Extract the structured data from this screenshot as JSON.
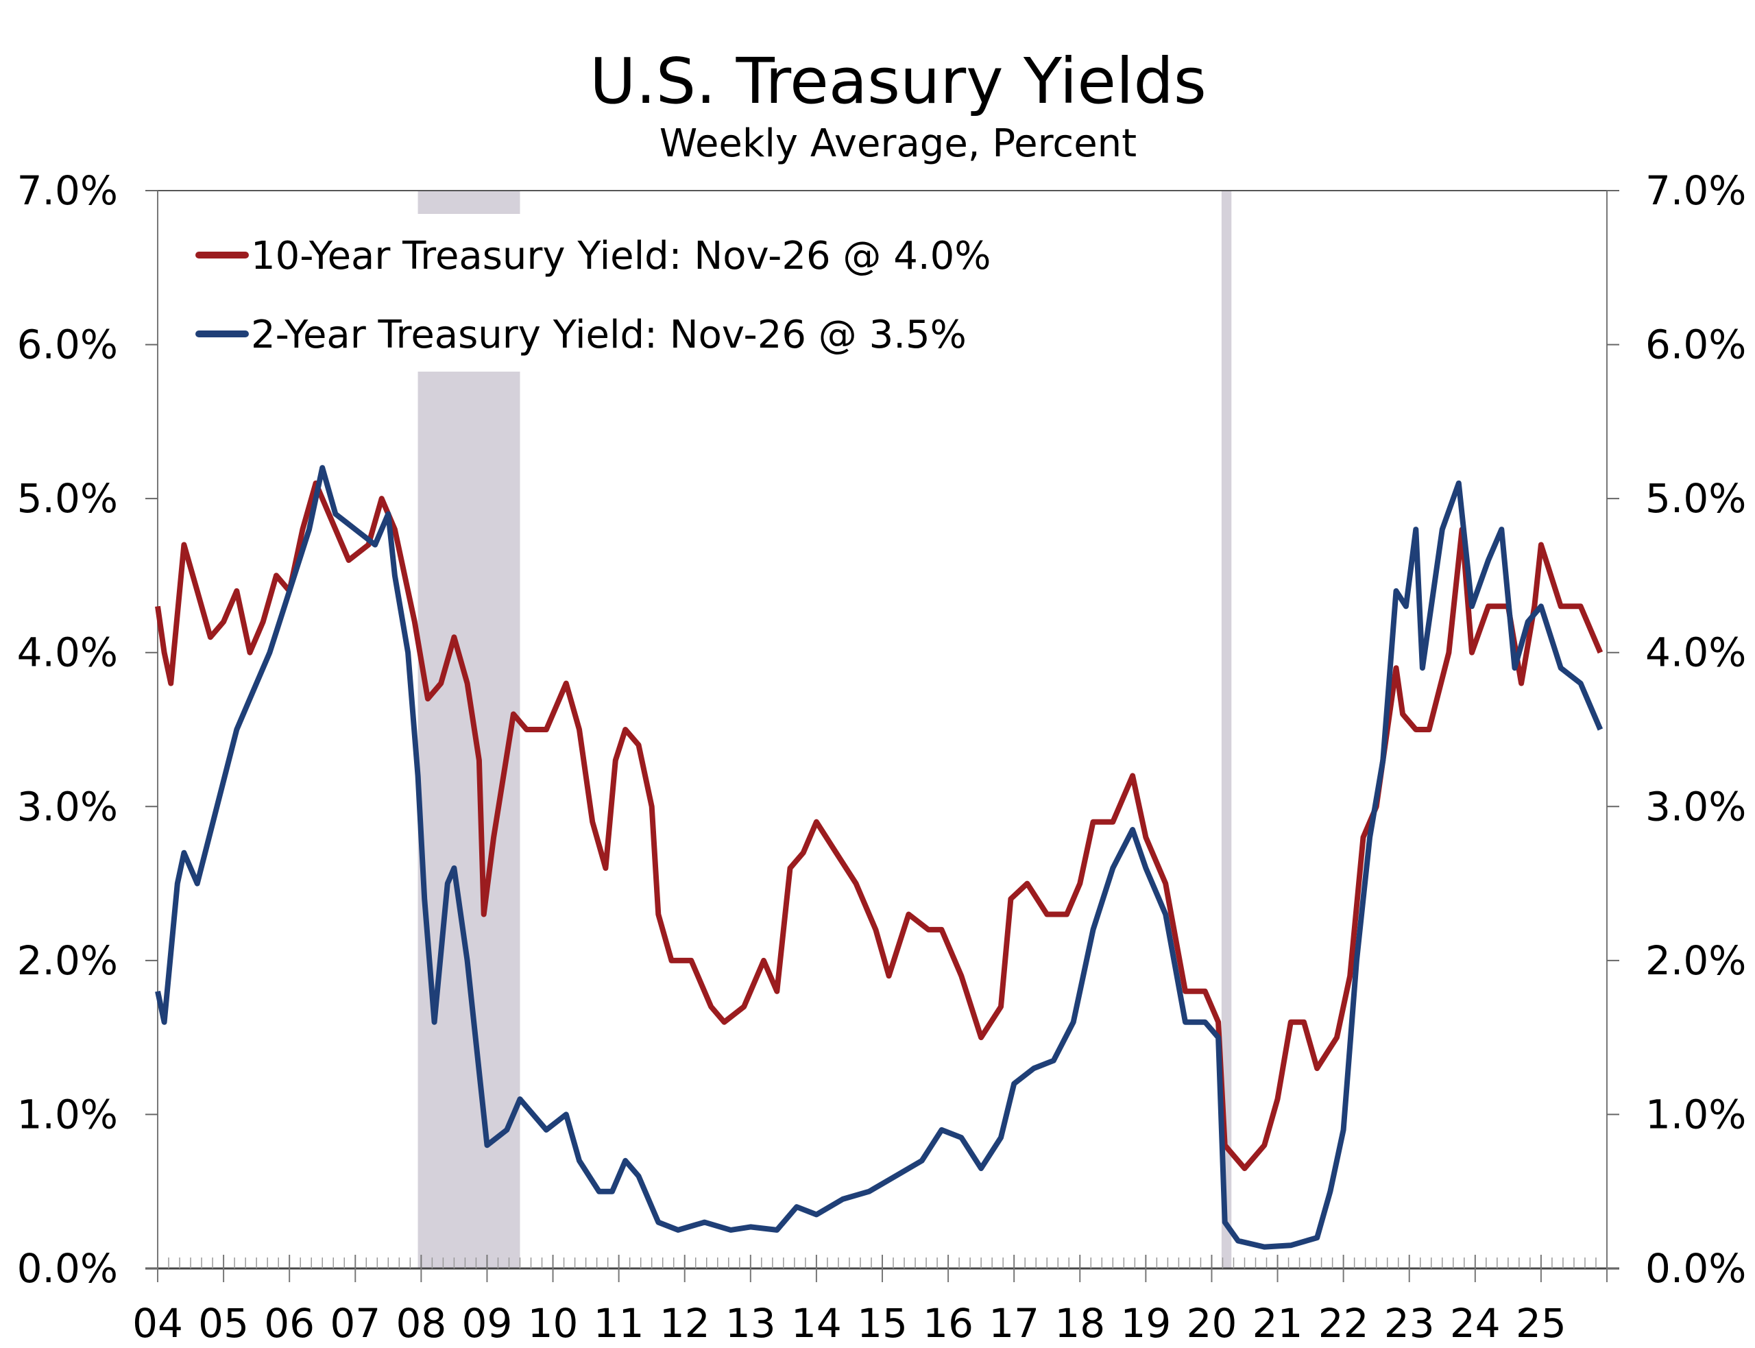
{
  "chart_data": {
    "type": "line",
    "title": "U.S. Treasury Yields",
    "subtitle": "Weekly Average, Percent",
    "xlabel": "",
    "ylabel": "",
    "xlim": [
      2004,
      2026
    ],
    "ylim": [
      0,
      7
    ],
    "y_ticks": [
      0,
      1,
      2,
      3,
      4,
      5,
      6,
      7
    ],
    "y_tick_labels": [
      "0.0%",
      "1.0%",
      "2.0%",
      "3.0%",
      "4.0%",
      "5.0%",
      "6.0%",
      "7.0%"
    ],
    "x_tick_labels": [
      "04",
      "05",
      "06",
      "07",
      "08",
      "09",
      "10",
      "11",
      "12",
      "13",
      "14",
      "15",
      "16",
      "17",
      "18",
      "19",
      "20",
      "21",
      "22",
      "23",
      "24",
      "25"
    ],
    "legend_position": "top-left",
    "recessions": [
      [
        2007.95,
        2009.5
      ],
      [
        2020.15,
        2020.3
      ]
    ],
    "recession_color": "#d5d1da",
    "series": [
      {
        "name": "10-Year Treasury Yield: Nov-26 @ 4.0%",
        "color": "#9b1c1f",
        "x": [
          2004.0,
          2004.1,
          2004.2,
          2004.4,
          2004.6,
          2004.8,
          2005.0,
          2005.2,
          2005.4,
          2005.6,
          2005.8,
          2006.0,
          2006.2,
          2006.4,
          2006.6,
          2006.9,
          2007.2,
          2007.4,
          2007.6,
          2007.9,
          2008.1,
          2008.3,
          2008.5,
          2008.7,
          2008.88,
          2008.95,
          2009.1,
          2009.4,
          2009.6,
          2009.9,
          2010.2,
          2010.4,
          2010.6,
          2010.8,
          2010.95,
          2011.1,
          2011.3,
          2011.5,
          2011.6,
          2011.8,
          2012.1,
          2012.4,
          2012.6,
          2012.9,
          2013.2,
          2013.4,
          2013.6,
          2013.8,
          2014.0,
          2014.3,
          2014.6,
          2014.9,
          2015.1,
          2015.4,
          2015.7,
          2015.9,
          2016.2,
          2016.5,
          2016.8,
          2016.95,
          2017.2,
          2017.5,
          2017.8,
          2018.0,
          2018.2,
          2018.5,
          2018.8,
          2019.0,
          2019.3,
          2019.6,
          2019.9,
          2020.1,
          2020.2,
          2020.5,
          2020.8,
          2021.0,
          2021.2,
          2021.4,
          2021.6,
          2021.9,
          2022.1,
          2022.3,
          2022.5,
          2022.8,
          2022.9,
          2023.1,
          2023.3,
          2023.6,
          2023.8,
          2023.95,
          2024.2,
          2024.5,
          2024.7,
          2024.9,
          2025.0,
          2025.3,
          2025.6,
          2025.9
        ],
        "values": [
          4.3,
          4.0,
          3.8,
          4.7,
          4.4,
          4.1,
          4.2,
          4.4,
          4.0,
          4.2,
          4.5,
          4.4,
          4.8,
          5.1,
          4.9,
          4.6,
          4.7,
          5.0,
          4.8,
          4.2,
          3.7,
          3.8,
          4.1,
          3.8,
          3.3,
          2.3,
          2.8,
          3.6,
          3.5,
          3.5,
          3.8,
          3.5,
          2.9,
          2.6,
          3.3,
          3.5,
          3.4,
          3.0,
          2.3,
          2.0,
          2.0,
          1.7,
          1.6,
          1.7,
          2.0,
          1.8,
          2.6,
          2.7,
          2.9,
          2.7,
          2.5,
          2.2,
          1.9,
          2.3,
          2.2,
          2.2,
          1.9,
          1.5,
          1.7,
          2.4,
          2.5,
          2.3,
          2.3,
          2.5,
          2.9,
          2.9,
          3.2,
          2.8,
          2.5,
          1.8,
          1.8,
          1.6,
          0.8,
          0.65,
          0.8,
          1.1,
          1.6,
          1.6,
          1.3,
          1.5,
          1.9,
          2.8,
          3.0,
          3.9,
          3.6,
          3.5,
          3.5,
          4.0,
          4.8,
          4.0,
          4.3,
          4.3,
          3.8,
          4.3,
          4.7,
          4.3,
          4.3,
          4.0
        ]
      },
      {
        "name": "2-Year Treasury Yield: Nov-26 @ 3.5%",
        "color": "#1f3f77",
        "x": [
          2004.0,
          2004.1,
          2004.3,
          2004.4,
          2004.6,
          2004.9,
          2005.2,
          2005.4,
          2005.7,
          2006.0,
          2006.3,
          2006.5,
          2006.7,
          2007.0,
          2007.3,
          2007.5,
          2007.6,
          2007.8,
          2007.95,
          2008.05,
          2008.2,
          2008.4,
          2008.5,
          2008.7,
          2008.9,
          2009.0,
          2009.3,
          2009.5,
          2009.9,
          2010.2,
          2010.4,
          2010.7,
          2010.9,
          2011.1,
          2011.3,
          2011.6,
          2011.9,
          2012.3,
          2012.7,
          2013.0,
          2013.4,
          2013.7,
          2014.0,
          2014.4,
          2014.8,
          2015.2,
          2015.6,
          2015.9,
          2016.2,
          2016.5,
          2016.8,
          2017.0,
          2017.3,
          2017.6,
          2017.9,
          2018.2,
          2018.5,
          2018.8,
          2019.0,
          2019.3,
          2019.6,
          2019.9,
          2020.1,
          2020.2,
          2020.4,
          2020.8,
          2021.2,
          2021.6,
          2021.8,
          2022.0,
          2022.2,
          2022.4,
          2022.6,
          2022.8,
          2022.95,
          2023.1,
          2023.2,
          2023.5,
          2023.75,
          2023.95,
          2024.2,
          2024.4,
          2024.6,
          2024.8,
          2025.0,
          2025.3,
          2025.6,
          2025.9
        ],
        "values": [
          1.8,
          1.6,
          2.5,
          2.7,
          2.5,
          3.0,
          3.5,
          3.7,
          4.0,
          4.4,
          4.8,
          5.2,
          4.9,
          4.8,
          4.7,
          4.9,
          4.5,
          4.0,
          3.2,
          2.4,
          1.6,
          2.5,
          2.6,
          2.0,
          1.2,
          0.8,
          0.9,
          1.1,
          0.9,
          1.0,
          0.7,
          0.5,
          0.5,
          0.7,
          0.6,
          0.3,
          0.25,
          0.3,
          0.25,
          0.27,
          0.25,
          0.4,
          0.35,
          0.45,
          0.5,
          0.6,
          0.7,
          0.9,
          0.85,
          0.65,
          0.85,
          1.2,
          1.3,
          1.35,
          1.6,
          2.2,
          2.6,
          2.85,
          2.6,
          2.3,
          1.6,
          1.6,
          1.5,
          0.3,
          0.18,
          0.14,
          0.15,
          0.2,
          0.5,
          0.9,
          2.0,
          2.8,
          3.3,
          4.4,
          4.3,
          4.8,
          3.9,
          4.8,
          5.1,
          4.3,
          4.6,
          4.8,
          3.9,
          4.2,
          4.3,
          3.9,
          3.8,
          3.5
        ]
      }
    ]
  }
}
